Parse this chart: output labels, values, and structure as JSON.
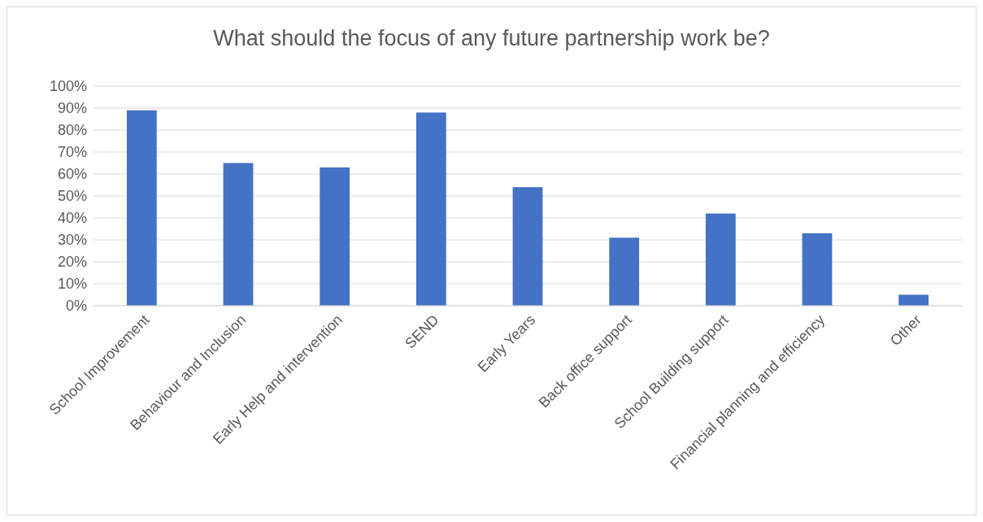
{
  "chart_data": {
    "type": "bar",
    "title": "What should the focus of any future partnership work be?",
    "categories": [
      "School Improvement",
      "Behaviour and Inclusion",
      "Early Help and intervention",
      "SEND",
      "Early Years",
      "Back office support",
      "School Building support",
      "Financial planning and efficiency",
      "Other"
    ],
    "values": [
      89,
      65,
      63,
      88,
      54,
      31,
      42,
      33,
      5
    ],
    "color": "#4472c4",
    "ylim": [
      0,
      100
    ],
    "yticks": [
      {
        "value": 0,
        "label": "0%"
      },
      {
        "value": 10,
        "label": "10%"
      },
      {
        "value": 20,
        "label": "20%"
      },
      {
        "value": 30,
        "label": "30%"
      },
      {
        "value": 40,
        "label": "40%"
      },
      {
        "value": 50,
        "label": "50%"
      },
      {
        "value": 60,
        "label": "60%"
      },
      {
        "value": 70,
        "label": "70%"
      },
      {
        "value": 80,
        "label": "80%"
      },
      {
        "value": 90,
        "label": "90%"
      },
      {
        "value": 100,
        "label": "100%"
      }
    ],
    "grid": "y"
  }
}
